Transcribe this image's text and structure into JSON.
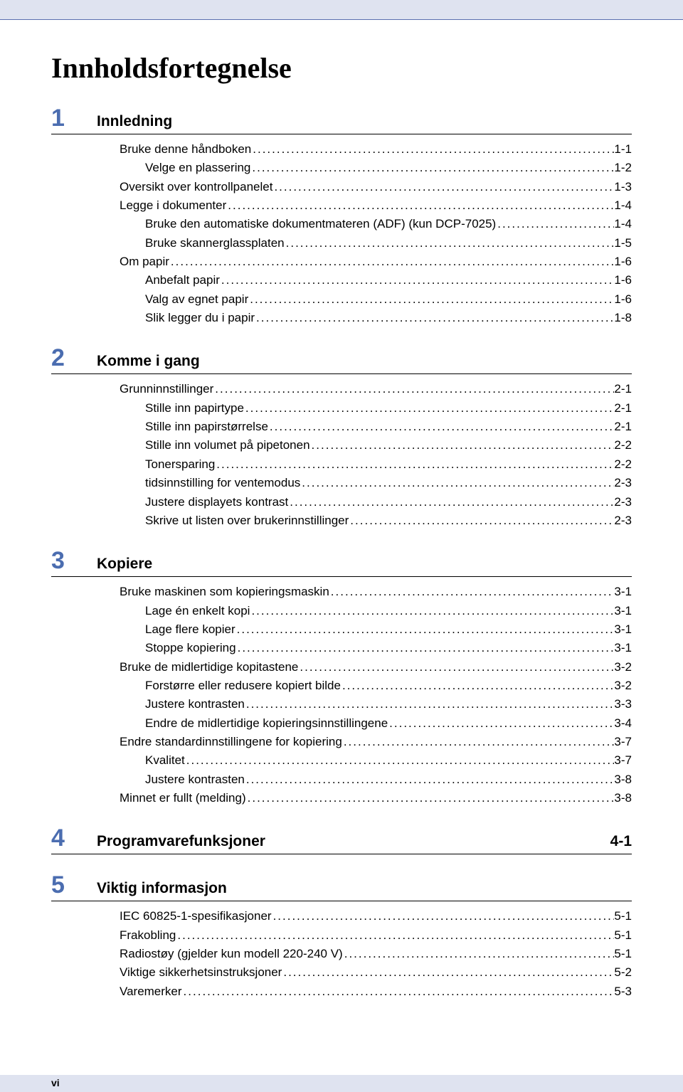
{
  "colors": {
    "top_bar_bg": "#dfe3f0",
    "top_bar_border": "#5b6fb0",
    "section_num": "#4b6db0",
    "text": "#000000",
    "page_bg": "#ffffff"
  },
  "typography": {
    "title_font": "Times New Roman",
    "title_fontsize": 40,
    "body_font": "Arial",
    "section_num_fontsize": 34,
    "section_title_fontsize": 21,
    "entry_fontsize": 17
  },
  "title": "Innholdsfortegnelse",
  "footer": "vi",
  "sections": [
    {
      "num": "1",
      "title": "Innledning",
      "page": "",
      "entries": [
        {
          "level": 0,
          "label": "Bruke denne håndboken",
          "page": "1-1"
        },
        {
          "level": 1,
          "label": "Velge en plassering",
          "page": "1-2"
        },
        {
          "level": 0,
          "label": "Oversikt over kontrollpanelet",
          "page": "1-3"
        },
        {
          "level": 0,
          "label": "Legge i dokumenter",
          "page": "1-4"
        },
        {
          "level": 1,
          "label": "Bruke den automatiske dokumentmateren (ADF) (kun DCP-7025)",
          "page": "1-4"
        },
        {
          "level": 1,
          "label": "Bruke skannerglassplaten",
          "page": "1-5"
        },
        {
          "level": 0,
          "label": "Om papir",
          "page": "1-6"
        },
        {
          "level": 1,
          "label": "Anbefalt papir",
          "page": "1-6"
        },
        {
          "level": 1,
          "label": "Valg av egnet papir",
          "page": "1-6"
        },
        {
          "level": 1,
          "label": "Slik legger du i papir",
          "page": "1-8"
        }
      ]
    },
    {
      "num": "2",
      "title": "Komme i gang",
      "page": "",
      "entries": [
        {
          "level": 0,
          "label": "Grunninnstillinger",
          "page": "2-1"
        },
        {
          "level": 1,
          "label": "Stille inn papirtype",
          "page": "2-1"
        },
        {
          "level": 1,
          "label": "Stille inn papirstørrelse",
          "page": "2-1"
        },
        {
          "level": 1,
          "label": "Stille inn volumet på pipetonen",
          "page": "2-2"
        },
        {
          "level": 1,
          "label": "Tonersparing",
          "page": "2-2"
        },
        {
          "level": 1,
          "label": "tidsinnstilling for ventemodus",
          "page": "2-3"
        },
        {
          "level": 1,
          "label": "Justere displayets kontrast",
          "page": "2-3"
        },
        {
          "level": 1,
          "label": "Skrive ut listen over brukerinnstillinger",
          "page": "2-3"
        }
      ]
    },
    {
      "num": "3",
      "title": "Kopiere",
      "page": "",
      "entries": [
        {
          "level": 0,
          "label": "Bruke maskinen som kopieringsmaskin",
          "page": "3-1"
        },
        {
          "level": 1,
          "label": "Lage én enkelt kopi",
          "page": "3-1"
        },
        {
          "level": 1,
          "label": "Lage flere kopier",
          "page": "3-1"
        },
        {
          "level": 1,
          "label": "Stoppe kopiering",
          "page": "3-1"
        },
        {
          "level": 0,
          "label": "Bruke de midlertidige kopitastene",
          "page": "3-2"
        },
        {
          "level": 1,
          "label": "Forstørre eller redusere kopiert bilde",
          "page": "3-2"
        },
        {
          "level": 1,
          "label": "Justere kontrasten",
          "page": "3-3"
        },
        {
          "level": 1,
          "label": "Endre de midlertidige kopieringsinnstillingene",
          "page": "3-4"
        },
        {
          "level": 0,
          "label": "Endre standardinnstillingene for kopiering",
          "page": "3-7"
        },
        {
          "level": 1,
          "label": "Kvalitet",
          "page": "3-7"
        },
        {
          "level": 1,
          "label": "Justere kontrasten",
          "page": "3-8"
        },
        {
          "level": 0,
          "label": "Minnet er fullt (melding)",
          "page": "3-8"
        }
      ]
    },
    {
      "num": "4",
      "title": "Programvarefunksjoner",
      "page": "4-1",
      "entries": []
    },
    {
      "num": "5",
      "title": "Viktig informasjon",
      "page": "",
      "entries": [
        {
          "level": 0,
          "label": "IEC 60825-1-spesifikasjoner",
          "page": "5-1"
        },
        {
          "level": 0,
          "label": "Frakobling",
          "page": "5-1"
        },
        {
          "level": 0,
          "label": "Radiostøy (gjelder kun modell 220-240 V)",
          "page": "5-1"
        },
        {
          "level": 0,
          "label": "Viktige sikkerhetsinstruksjoner",
          "page": "5-2"
        },
        {
          "level": 0,
          "label": "Varemerker",
          "page": "5-3"
        }
      ]
    }
  ]
}
